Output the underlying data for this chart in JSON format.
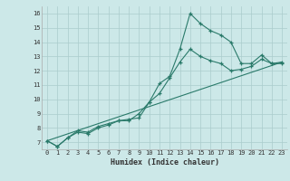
{
  "xlabel": "Humidex (Indice chaleur)",
  "bg_color": "#cce8e8",
  "grid_color": "#aacccc",
  "line_color": "#2a7a6a",
  "xlim": [
    -0.5,
    23.5
  ],
  "ylim": [
    6.5,
    16.5
  ],
  "xticks": [
    0,
    1,
    2,
    3,
    4,
    5,
    6,
    7,
    8,
    9,
    10,
    11,
    12,
    13,
    14,
    15,
    16,
    17,
    18,
    19,
    20,
    21,
    22,
    23
  ],
  "yticks": [
    7,
    8,
    9,
    10,
    11,
    12,
    13,
    14,
    15,
    16
  ],
  "line1_x": [
    0,
    1,
    2,
    3,
    4,
    5,
    6,
    7,
    8,
    9,
    10,
    11,
    12,
    13,
    14,
    15,
    16,
    17,
    18,
    19,
    20,
    21,
    22,
    23
  ],
  "line1_y": [
    7.1,
    6.7,
    7.3,
    7.8,
    7.7,
    8.1,
    8.3,
    8.5,
    8.6,
    8.7,
    9.8,
    11.1,
    11.6,
    13.5,
    16.0,
    15.3,
    14.8,
    14.5,
    14.0,
    12.5,
    12.5,
    13.1,
    12.5,
    12.6
  ],
  "line2_x": [
    0,
    1,
    2,
    3,
    4,
    5,
    6,
    7,
    8,
    9,
    10,
    11,
    12,
    13,
    14,
    15,
    16,
    17,
    18,
    19,
    20,
    21,
    22,
    23
  ],
  "line2_y": [
    7.1,
    6.7,
    7.3,
    7.7,
    7.6,
    8.0,
    8.2,
    8.5,
    8.5,
    9.0,
    9.8,
    10.4,
    11.5,
    12.6,
    13.5,
    13.0,
    12.7,
    12.5,
    12.0,
    12.1,
    12.3,
    12.8,
    12.5,
    12.5
  ],
  "line3_x": [
    0,
    23
  ],
  "line3_y": [
    7.1,
    12.6
  ],
  "xlabel_fontsize": 6.0,
  "tick_fontsize": 5.0
}
